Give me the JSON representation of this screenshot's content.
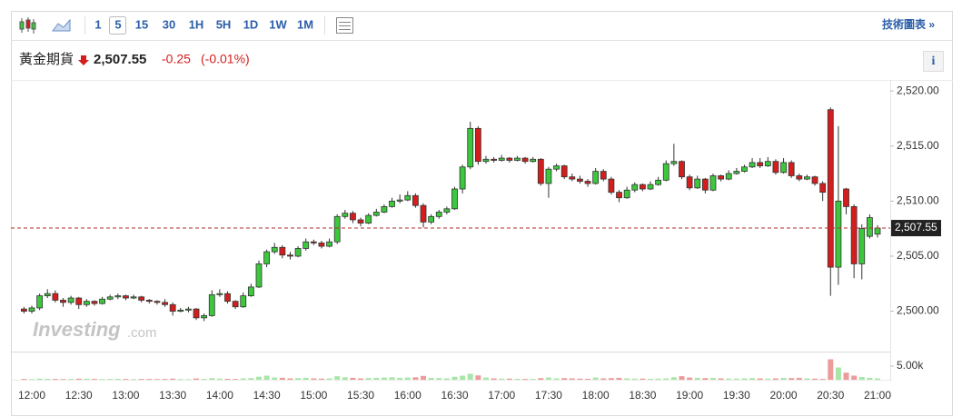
{
  "toolbar": {
    "intervals": [
      "1",
      "5",
      "15",
      "30",
      "1H",
      "5H",
      "1D",
      "1W",
      "1M"
    ],
    "selected_index": 1,
    "link": "技術圖表 »"
  },
  "info": "i",
  "chart_data": {
    "type": "candlestick",
    "title": "黃金期貨",
    "price": {
      "value": 2507.55,
      "label": "2,507.55"
    },
    "change": -0.25,
    "change_percent": {
      "value": -0.01,
      "label": "(-0.01%)"
    },
    "watermark": [
      "Investing",
      ".com"
    ],
    "up_color": "#3cc83c",
    "down_color": "#d41e1e",
    "last_line_color": "#b03030",
    "ylim": [
      2496.5,
      2521
    ],
    "yticks": [
      {
        "value": 2500,
        "label": "2,500.00"
      },
      {
        "value": 2505,
        "label": "2,505.00"
      },
      {
        "value": 2510,
        "label": "2,510.00"
      },
      {
        "value": 2515,
        "label": "2,515.00"
      },
      {
        "value": 2520,
        "label": "2,520.00"
      }
    ],
    "xticks": [
      "12:00",
      "12:30",
      "13:00",
      "13:30",
      "14:00",
      "14:30",
      "15:00",
      "15:30",
      "16:00",
      "16:30",
      "17:00",
      "17:30",
      "18:00",
      "18:30",
      "19:00",
      "19:30",
      "20:00",
      "20:30",
      "21:00"
    ],
    "x": [
      "11:55",
      "12:00",
      "12:05",
      "12:10",
      "12:15",
      "12:20",
      "12:25",
      "12:30",
      "12:35",
      "12:40",
      "12:45",
      "12:50",
      "12:55",
      "13:00",
      "13:05",
      "13:10",
      "13:15",
      "13:20",
      "13:25",
      "13:30",
      "13:35",
      "13:40",
      "13:45",
      "13:50",
      "13:55",
      "14:00",
      "14:05",
      "14:10",
      "14:15",
      "14:20",
      "14:25",
      "14:30",
      "14:35",
      "14:40",
      "14:45",
      "14:50",
      "14:55",
      "15:00",
      "15:05",
      "15:10",
      "15:15",
      "15:20",
      "15:25",
      "15:30",
      "15:35",
      "15:40",
      "15:45",
      "15:50",
      "15:55",
      "16:00",
      "16:05",
      "16:10",
      "16:15",
      "16:20",
      "16:25",
      "16:30",
      "16:35",
      "16:40",
      "16:45",
      "16:50",
      "16:55",
      "17:00",
      "17:05",
      "17:10",
      "17:15",
      "17:20",
      "17:25",
      "17:30",
      "17:35",
      "17:40",
      "17:45",
      "17:50",
      "17:55",
      "18:00",
      "18:05",
      "18:10",
      "18:15",
      "18:20",
      "18:25",
      "18:30",
      "18:35",
      "18:40",
      "18:45",
      "18:50",
      "18:55",
      "19:00",
      "19:05",
      "19:10",
      "19:15",
      "19:20",
      "19:25",
      "19:30",
      "19:35",
      "19:40",
      "19:45",
      "19:50",
      "19:55",
      "20:00",
      "20:05",
      "20:10",
      "20:15",
      "20:20",
      "20:25",
      "20:30",
      "20:35",
      "20:40",
      "20:45",
      "20:50",
      "20:55",
      "21:00"
    ],
    "ohlc": [
      [
        2500.2,
        2500.4,
        2499.8,
        2500.0
      ],
      [
        2500.0,
        2500.5,
        2499.8,
        2500.3
      ],
      [
        2500.3,
        2501.6,
        2500.1,
        2501.4
      ],
      [
        2501.4,
        2502.0,
        2501.2,
        2501.6
      ],
      [
        2501.6,
        2501.9,
        2500.8,
        2501.0
      ],
      [
        2501.0,
        2501.2,
        2500.4,
        2500.8
      ],
      [
        2500.8,
        2501.4,
        2500.6,
        2501.2
      ],
      [
        2501.2,
        2501.3,
        2500.2,
        2500.6
      ],
      [
        2500.6,
        2501.1,
        2500.4,
        2500.9
      ],
      [
        2500.9,
        2501.0,
        2500.5,
        2500.7
      ],
      [
        2500.7,
        2501.3,
        2500.6,
        2501.1
      ],
      [
        2501.1,
        2501.5,
        2501.0,
        2501.3
      ],
      [
        2501.3,
        2501.6,
        2501.1,
        2501.4
      ],
      [
        2501.4,
        2501.5,
        2501.0,
        2501.2
      ],
      [
        2501.2,
        2501.5,
        2501.1,
        2501.3
      ],
      [
        2501.3,
        2501.4,
        2500.8,
        2501.0
      ],
      [
        2501.0,
        2501.1,
        2500.7,
        2500.9
      ],
      [
        2500.9,
        2501.0,
        2500.6,
        2500.8
      ],
      [
        2500.8,
        2501.1,
        2500.4,
        2500.6
      ],
      [
        2500.6,
        2500.8,
        2499.6,
        2500.0
      ],
      [
        2500.0,
        2500.3,
        2499.9,
        2500.1
      ],
      [
        2500.1,
        2500.4,
        2499.9,
        2500.2
      ],
      [
        2500.2,
        2500.3,
        2499.2,
        2499.4
      ],
      [
        2499.4,
        2499.8,
        2499.1,
        2499.6
      ],
      [
        2499.6,
        2501.9,
        2499.5,
        2501.5
      ],
      [
        2501.5,
        2502.0,
        2501.3,
        2501.6
      ],
      [
        2501.6,
        2501.8,
        2500.7,
        2500.9
      ],
      [
        2500.9,
        2501.0,
        2500.2,
        2500.4
      ],
      [
        2500.4,
        2501.7,
        2500.3,
        2501.4
      ],
      [
        2501.4,
        2502.5,
        2501.3,
        2502.2
      ],
      [
        2502.2,
        2504.6,
        2502.1,
        2504.3
      ],
      [
        2504.3,
        2505.6,
        2504.0,
        2505.4
      ],
      [
        2505.4,
        2506.2,
        2505.2,
        2505.8
      ],
      [
        2505.8,
        2506.0,
        2504.8,
        2505.1
      ],
      [
        2505.1,
        2505.4,
        2504.7,
        2505.0
      ],
      [
        2505.0,
        2505.9,
        2504.9,
        2505.7
      ],
      [
        2505.7,
        2506.6,
        2505.5,
        2506.3
      ],
      [
        2506.3,
        2506.5,
        2506.0,
        2506.2
      ],
      [
        2506.2,
        2506.4,
        2505.7,
        2505.9
      ],
      [
        2505.9,
        2506.6,
        2505.8,
        2506.3
      ],
      [
        2506.3,
        2508.8,
        2506.1,
        2508.6
      ],
      [
        2508.6,
        2509.2,
        2508.4,
        2508.9
      ],
      [
        2508.9,
        2509.1,
        2508.0,
        2508.3
      ],
      [
        2508.3,
        2508.5,
        2507.7,
        2508.0
      ],
      [
        2508.0,
        2508.9,
        2507.9,
        2508.7
      ],
      [
        2508.7,
        2509.3,
        2508.6,
        2509.0
      ],
      [
        2509.0,
        2509.7,
        2508.9,
        2509.5
      ],
      [
        2509.5,
        2510.3,
        2509.4,
        2510.0
      ],
      [
        2510.0,
        2510.6,
        2509.8,
        2510.1
      ],
      [
        2510.1,
        2510.9,
        2510.0,
        2510.5
      ],
      [
        2510.5,
        2510.7,
        2509.4,
        2509.6
      ],
      [
        2509.6,
        2509.8,
        2507.6,
        2508.1
      ],
      [
        2508.1,
        2508.8,
        2507.9,
        2508.6
      ],
      [
        2508.6,
        2509.2,
        2508.4,
        2509.0
      ],
      [
        2509.0,
        2509.5,
        2508.8,
        2509.3
      ],
      [
        2509.3,
        2511.3,
        2509.2,
        2511.1
      ],
      [
        2511.1,
        2513.3,
        2510.7,
        2513.1
      ],
      [
        2513.1,
        2517.2,
        2512.9,
        2516.6
      ],
      [
        2516.6,
        2516.8,
        2513.3,
        2513.6
      ],
      [
        2513.6,
        2514.1,
        2513.4,
        2513.8
      ],
      [
        2513.8,
        2514.0,
        2513.5,
        2513.7
      ],
      [
        2513.7,
        2514.2,
        2513.6,
        2513.9
      ],
      [
        2513.9,
        2514.0,
        2513.5,
        2513.7
      ],
      [
        2513.7,
        2514.1,
        2513.6,
        2513.9
      ],
      [
        2513.9,
        2514.0,
        2513.4,
        2513.6
      ],
      [
        2513.6,
        2514.0,
        2513.5,
        2513.8
      ],
      [
        2513.8,
        2513.9,
        2511.4,
        2511.6
      ],
      [
        2511.6,
        2513.1,
        2510.3,
        2512.9
      ],
      [
        2512.9,
        2513.4,
        2512.7,
        2513.2
      ],
      [
        2513.2,
        2513.3,
        2512.0,
        2512.2
      ],
      [
        2512.2,
        2512.5,
        2511.8,
        2512.0
      ],
      [
        2512.0,
        2512.3,
        2511.6,
        2511.8
      ],
      [
        2511.8,
        2512.0,
        2511.3,
        2511.6
      ],
      [
        2511.6,
        2513.0,
        2511.5,
        2512.7
      ],
      [
        2512.7,
        2512.9,
        2511.8,
        2512.0
      ],
      [
        2512.0,
        2512.2,
        2510.6,
        2510.8
      ],
      [
        2510.8,
        2511.0,
        2509.9,
        2510.3
      ],
      [
        2510.3,
        2511.3,
        2510.2,
        2511.0
      ],
      [
        2511.0,
        2511.7,
        2510.8,
        2511.5
      ],
      [
        2511.5,
        2511.6,
        2510.9,
        2511.1
      ],
      [
        2511.1,
        2511.8,
        2511.0,
        2511.5
      ],
      [
        2511.5,
        2512.2,
        2511.4,
        2511.9
      ],
      [
        2511.9,
        2513.7,
        2511.8,
        2513.4
      ],
      [
        2513.4,
        2515.2,
        2513.2,
        2513.6
      ],
      [
        2513.6,
        2513.7,
        2512.0,
        2512.2
      ],
      [
        2512.2,
        2512.4,
        2511.0,
        2511.2
      ],
      [
        2511.2,
        2512.3,
        2511.1,
        2512.0
      ],
      [
        2512.0,
        2512.1,
        2510.7,
        2511.0
      ],
      [
        2511.0,
        2512.5,
        2510.9,
        2512.3
      ],
      [
        2512.3,
        2512.4,
        2511.8,
        2512.0
      ],
      [
        2512.0,
        2512.8,
        2511.9,
        2512.5
      ],
      [
        2512.5,
        2513.0,
        2512.4,
        2512.7
      ],
      [
        2512.7,
        2513.3,
        2512.6,
        2513.1
      ],
      [
        2513.1,
        2513.9,
        2513.0,
        2513.5
      ],
      [
        2513.5,
        2513.9,
        2513.0,
        2513.2
      ],
      [
        2513.2,
        2514.0,
        2513.1,
        2513.6
      ],
      [
        2513.6,
        2513.8,
        2512.4,
        2512.6
      ],
      [
        2512.6,
        2513.9,
        2512.5,
        2513.5
      ],
      [
        2513.5,
        2513.7,
        2512.1,
        2512.3
      ],
      [
        2512.3,
        2512.5,
        2511.8,
        2512.0
      ],
      [
        2512.0,
        2512.4,
        2511.9,
        2512.2
      ],
      [
        2512.2,
        2512.3,
        2511.4,
        2511.6
      ],
      [
        2511.6,
        2511.8,
        2510.0,
        2510.8
      ],
      [
        2518.3,
        2518.5,
        2501.4,
        2504.0
      ],
      [
        2504.0,
        2516.8,
        2502.4,
        2510.0
      ],
      [
        2511.1,
        2511.2,
        2508.8,
        2509.5
      ],
      [
        2509.5,
        2509.7,
        2503.0,
        2504.3
      ],
      [
        2504.3,
        2507.9,
        2502.9,
        2507.5
      ],
      [
        2506.8,
        2508.8,
        2506.6,
        2508.5
      ],
      [
        2507.0,
        2507.8,
        2506.7,
        2507.55
      ]
    ],
    "volume": {
      "ylim": [
        0,
        10000
      ],
      "yticks": [
        {
          "value": 5000,
          "label": "5.00k"
        }
      ],
      "values": [
        300,
        250,
        400,
        350,
        300,
        250,
        300,
        400,
        350,
        300,
        250,
        300,
        350,
        300,
        250,
        300,
        300,
        250,
        300,
        400,
        250,
        200,
        450,
        300,
        600,
        400,
        350,
        300,
        500,
        600,
        1100,
        1500,
        800,
        700,
        500,
        600,
        700,
        500,
        400,
        500,
        1300,
        900,
        700,
        500,
        600,
        700,
        800,
        900,
        700,
        800,
        900,
        1400,
        700,
        600,
        500,
        1100,
        1500,
        2200,
        1600,
        800,
        500,
        400,
        400,
        350,
        300,
        300,
        600,
        800,
        500,
        600,
        500,
        400,
        350,
        800,
        500,
        600,
        700,
        500,
        400,
        400,
        350,
        400,
        500,
        900,
        1300,
        800,
        700,
        600,
        700,
        500,
        400,
        400,
        500,
        600,
        500,
        400,
        500,
        700,
        600,
        700,
        500,
        400,
        300,
        7500,
        4500,
        2600,
        1500,
        1000,
        700,
        500
      ]
    }
  }
}
